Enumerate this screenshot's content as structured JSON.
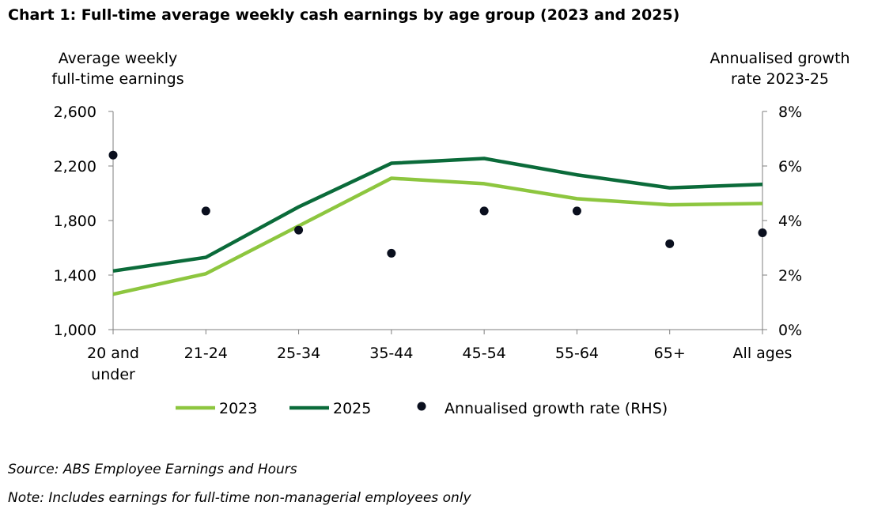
{
  "title": "Chart 1: Full-time average weekly cash earnings by age group (2023 and 2025)",
  "source": "Source: ABS Employee Earnings and Hours",
  "note": "Note: Includes earnings for full-time non-managerial employees only",
  "chart_data": {
    "type": "line",
    "categories": [
      [
        "20 and",
        "under"
      ],
      [
        "21-24"
      ],
      [
        "25-34"
      ],
      [
        "35-44"
      ],
      [
        "45-54"
      ],
      [
        "55-64"
      ],
      [
        "65+"
      ],
      [
        "All ages"
      ]
    ],
    "ylabel_left": [
      "Average weekly",
      "full-time earnings"
    ],
    "ylabel_right": [
      "Annualised growth",
      "rate 2023-25"
    ],
    "ylim_left": [
      1000,
      2600
    ],
    "yticks_left": [
      1000,
      1400,
      1800,
      2200,
      2600
    ],
    "ytick_labels_left": [
      "1,000",
      "1,400",
      "1,800",
      "2,200",
      "2,600"
    ],
    "ylim_right": [
      0,
      8
    ],
    "yticks_right": [
      0,
      2,
      4,
      6,
      8
    ],
    "ytick_labels_right": [
      "0%",
      "2%",
      "4%",
      "6%",
      "8%"
    ],
    "grid": false,
    "legend_position": "bottom",
    "series": [
      {
        "name": "2023",
        "axis": "left",
        "kind": "line",
        "color": "#8dc63f",
        "values": [
          1260,
          1410,
          1760,
          2110,
          2070,
          1960,
          1915,
          1925
        ]
      },
      {
        "name": "2025",
        "axis": "left",
        "kind": "line",
        "color": "#0b6b3a",
        "values": [
          1430,
          1530,
          1900,
          2220,
          2255,
          2135,
          2040,
          2065
        ]
      },
      {
        "name": "Annualised growth rate (RHS)",
        "axis": "right",
        "kind": "scatter",
        "color": "#0a0f1e",
        "values": [
          6.4,
          4.35,
          3.65,
          2.8,
          4.35,
          4.35,
          3.15,
          3.55
        ]
      }
    ]
  }
}
